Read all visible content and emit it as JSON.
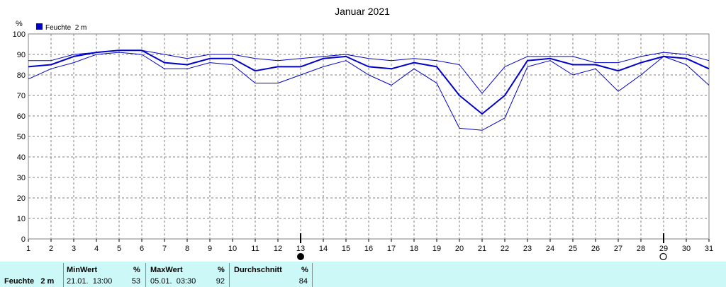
{
  "chart_data": {
    "type": "line",
    "title": "Januar 2021",
    "ylabel": "%",
    "xlabel": "",
    "ylim": [
      0,
      100
    ],
    "yticks": [
      0,
      10,
      20,
      30,
      40,
      50,
      60,
      70,
      80,
      90,
      100
    ],
    "x": [
      1,
      2,
      3,
      4,
      5,
      6,
      7,
      8,
      9,
      10,
      11,
      12,
      13,
      14,
      15,
      16,
      17,
      18,
      19,
      20,
      21,
      22,
      23,
      24,
      25,
      26,
      27,
      28,
      29,
      30,
      31
    ],
    "legend": [
      {
        "name": "Feuchte  2 m",
        "color": "#0000cc"
      }
    ],
    "legend_placement": "top-left",
    "grid": true,
    "series": [
      {
        "name": "Feuchte  2 m",
        "role": "mean",
        "color": "#0000cc",
        "values": [
          84,
          85,
          89,
          91,
          92,
          92,
          86,
          85,
          88,
          88,
          82,
          84,
          84,
          88,
          89,
          84,
          83,
          86,
          84,
          70,
          61,
          70,
          87,
          88,
          85,
          85,
          82,
          86,
          89,
          88,
          83
        ]
      },
      {
        "name": "",
        "role": "max",
        "color": "#0000cc",
        "values": [
          87,
          87,
          90,
          91,
          92,
          92,
          90,
          88,
          90,
          90,
          88,
          87,
          88,
          89,
          90,
          88,
          87,
          88,
          87,
          85,
          71,
          84,
          89,
          89,
          89,
          86,
          86,
          89,
          91,
          90,
          87
        ]
      },
      {
        "name": "",
        "role": "min",
        "color": "#0000cc",
        "values": [
          78,
          83,
          86,
          90,
          91,
          90,
          83,
          83,
          86,
          85,
          76,
          76,
          80,
          84,
          87,
          80,
          75,
          83,
          76,
          54,
          53,
          59,
          84,
          87,
          80,
          83,
          72,
          80,
          89,
          85,
          75
        ]
      }
    ],
    "markers": [
      {
        "x": 13,
        "symbol": "new-moon-icon"
      },
      {
        "x": 29,
        "symbol": "full-moon-icon"
      }
    ]
  },
  "stats": {
    "row_label": "Feuchte   2 m",
    "min_header": "MinWert",
    "min_unit": "%",
    "min_time": "21.01.  13:00",
    "min_value": "53",
    "max_header": "MaxWert",
    "max_unit": "%",
    "max_time": "05.01.  03:30",
    "max_value": "92",
    "avg_header": "Durchschnitt",
    "avg_unit": "%",
    "avg_value": "84"
  }
}
